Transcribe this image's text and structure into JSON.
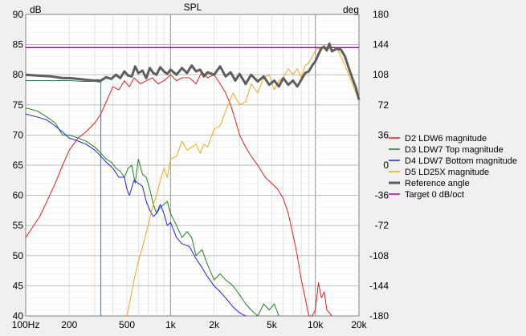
{
  "chart_data": {
    "type": "line",
    "title": "SPL",
    "ylabel_left": "dB",
    "ylabel_right": "deg",
    "x_scale": "log",
    "xlim": [
      100,
      20000
    ],
    "ylim_left": [
      40,
      90
    ],
    "ylim_right": [
      -180,
      180
    ],
    "grid": true,
    "legend_placement": "right",
    "x_ticks": [
      {
        "v": 100,
        "label": "100Hz"
      },
      {
        "v": 200,
        "label": "200"
      },
      {
        "v": 500,
        "label": "500"
      },
      {
        "v": 1000,
        "label": "1k"
      },
      {
        "v": 2000,
        "label": "2k"
      },
      {
        "v": 5000,
        "label": "5k"
      },
      {
        "v": 10000,
        "label": "10k"
      },
      {
        "v": 20000,
        "label": "20k"
      }
    ],
    "y_ticks_left": [
      {
        "v": 90,
        "label": "90"
      },
      {
        "v": 85,
        "label": "85"
      },
      {
        "v": 80,
        "label": "80"
      },
      {
        "v": 75,
        "label": "75"
      },
      {
        "v": 70,
        "label": "70"
      },
      {
        "v": 65,
        "label": "65"
      },
      {
        "v": 60,
        "label": "60"
      },
      {
        "v": 55,
        "label": "55"
      },
      {
        "v": 50,
        "label": "50"
      },
      {
        "v": 45,
        "label": "45"
      },
      {
        "v": 40,
        "label": "40"
      }
    ],
    "y_ticks_right": [
      {
        "v": 180,
        "label": "180"
      },
      {
        "v": 144,
        "label": "144"
      },
      {
        "v": 108,
        "label": "108"
      },
      {
        "v": 72,
        "label": "72"
      },
      {
        "v": 36,
        "label": "36"
      },
      {
        "v": 0,
        "label": "0"
      },
      {
        "v": -36,
        "label": "-36"
      },
      {
        "v": -72,
        "label": "-72"
      },
      {
        "v": -108,
        "label": "-108"
      },
      {
        "v": -144,
        "label": "-144"
      },
      {
        "v": -180,
        "label": "-180"
      }
    ],
    "marker_frequency": 330,
    "series": [
      {
        "name": "D2 LDW6 magnitude",
        "color": "#e02020",
        "width": 1,
        "x": [
          100,
          110,
          125,
          140,
          160,
          180,
          200,
          230,
          260,
          300,
          330,
          360,
          400,
          440,
          480,
          520,
          560,
          620,
          680,
          750,
          820,
          900,
          1000,
          1100,
          1200,
          1350,
          1500,
          1650,
          1800,
          2000,
          2200,
          2400,
          2600,
          2800,
          3000,
          3300,
          3600,
          4000,
          4500,
          5000,
          5500,
          6000,
          6500,
          7000,
          7500,
          8000,
          8500,
          9000,
          9500,
          10000,
          10500,
          11000,
          11500,
          12000,
          12500,
          13000
        ],
        "y": [
          53,
          54.5,
          56.5,
          59,
          62,
          65,
          67.5,
          69.5,
          70.5,
          72,
          73.5,
          75.5,
          78,
          77.5,
          79,
          78,
          79.5,
          78.5,
          79,
          79.5,
          78.5,
          79,
          80,
          79,
          79.5,
          79.5,
          78.5,
          80.5,
          79.5,
          80,
          78.5,
          77,
          75,
          72.5,
          70,
          68,
          66.5,
          65,
          63,
          62,
          61,
          59.5,
          57,
          53.5,
          50,
          46,
          43,
          40,
          40,
          41,
          45.5,
          43,
          44,
          41,
          40.5,
          40
        ]
      },
      {
        "name": "D3 LDW7 Top magnitude",
        "color": "#208020",
        "width": 1,
        "x": [
          100,
          120,
          140,
          160,
          180,
          200,
          230,
          260,
          300,
          330,
          360,
          390,
          420,
          450,
          480,
          510,
          540,
          570,
          600,
          640,
          680,
          720,
          760,
          800,
          850,
          900,
          950,
          1000,
          1100,
          1200,
          1300,
          1400,
          1500,
          1650,
          1800,
          2000,
          2200,
          2400,
          2700,
          3000,
          3300,
          3600,
          4000,
          4400,
          4800,
          5200,
          5600
        ],
        "y": [
          74.5,
          74,
          73,
          72,
          70,
          70,
          69.5,
          69,
          68,
          67,
          66,
          65.5,
          64.5,
          64,
          63,
          64.5,
          65,
          62,
          66,
          63.5,
          63,
          61,
          58.5,
          57,
          58,
          58.5,
          59,
          57,
          55,
          53,
          54,
          53,
          50,
          51,
          48.5,
          46,
          47,
          46,
          45,
          43.5,
          42,
          41,
          40,
          42,
          41,
          42,
          40
        ]
      },
      {
        "name": "D4 LDW7 Bottom magnitude",
        "color": "#2020e0",
        "width": 1,
        "x": [
          100,
          120,
          140,
          160,
          180,
          200,
          230,
          260,
          300,
          330,
          360,
          400,
          440,
          480,
          500,
          520,
          560,
          600,
          640,
          680,
          720,
          760,
          800,
          850,
          900,
          950,
          1000,
          1100,
          1200,
          1350,
          1500,
          1650,
          1800,
          2000,
          2200,
          2400,
          2700,
          3000,
          3300
        ],
        "y": [
          73.5,
          73,
          72.5,
          71.5,
          70.5,
          69.5,
          69,
          68.5,
          67.5,
          66.5,
          65.5,
          64.5,
          63,
          63,
          61,
          60,
          62.5,
          62,
          61.5,
          59,
          57.5,
          56.5,
          57,
          58.5,
          57,
          55,
          55.5,
          53,
          52,
          51.5,
          49.5,
          48,
          46.5,
          45,
          44,
          43,
          41.5,
          40.5,
          40
        ]
      },
      {
        "name": "D5 LD25X magnitude",
        "color": "#f0a820",
        "width": 1,
        "x": [
          500,
          530,
          560,
          600,
          650,
          700,
          750,
          800,
          850,
          900,
          950,
          1000,
          1100,
          1200,
          1300,
          1400,
          1500,
          1600,
          1700,
          1800,
          2000,
          2200,
          2400,
          2700,
          3000,
          3300,
          3600,
          4000,
          4400,
          4800,
          5200,
          5600,
          6000,
          6500,
          7000,
          7500,
          8000,
          8500,
          9000,
          9500,
          10000,
          10500,
          11000,
          11500,
          12000,
          12500,
          13000,
          14000,
          15000,
          16000,
          17000,
          18000,
          19000,
          20000
        ],
        "y": [
          40,
          43,
          46,
          49,
          52,
          55,
          58,
          60,
          62.5,
          64.5,
          63,
          66,
          66.5,
          69,
          67.5,
          68,
          68.5,
          67,
          68.5,
          68,
          71,
          71.5,
          74,
          77,
          75,
          75.5,
          78.5,
          77,
          79.5,
          80,
          77.5,
          79,
          79.5,
          81,
          80,
          81,
          79.5,
          81.5,
          82,
          83,
          84,
          84.5,
          84,
          85,
          84,
          84.5,
          84,
          84.5,
          83,
          81.5,
          80,
          78.5,
          77,
          76
        ]
      },
      {
        "name": "Reference angle",
        "color": "#5e5e5e",
        "width": 3,
        "axis": "right",
        "x": [
          100,
          120,
          150,
          180,
          200,
          230,
          260,
          300,
          330,
          360,
          390,
          420,
          450,
          480,
          510,
          540,
          570,
          600,
          640,
          680,
          720,
          760,
          800,
          850,
          900,
          950,
          1000,
          1100,
          1200,
          1300,
          1400,
          1500,
          1600,
          1700,
          1800,
          2000,
          2200,
          2400,
          2600,
          2800,
          3000,
          3300,
          3600,
          4000,
          4400,
          4800,
          5200,
          5600,
          6000,
          6500,
          7000,
          7500,
          8000,
          8500,
          9000,
          9500,
          10000,
          10500,
          11000,
          11500,
          12000,
          12500,
          13000,
          14000,
          15000,
          16000,
          17000,
          18000,
          19000,
          20000
        ],
        "y": [
          108,
          107,
          106,
          104,
          104,
          103,
          102,
          101,
          101,
          105,
          103,
          108,
          104,
          112,
          107,
          106,
          118,
          110,
          113,
          104,
          116,
          110,
          108,
          117,
          112,
          109,
          114,
          108,
          116,
          110,
          119,
          112,
          114,
          106,
          111,
          108,
          118,
          106,
          111,
          101,
          109,
          97,
          108,
          100,
          106,
          96,
          101,
          94,
          104,
          96,
          101,
          94,
          102,
          110,
          112,
          119,
          124,
          132,
          140,
          141,
          137,
          145,
          136,
          139,
          138,
          130,
          116,
          104,
          93,
          78
        ]
      },
      {
        "name": "Target 0 dB/oct",
        "color": "#b000b0",
        "width": 1.5,
        "x": [
          100,
          20000
        ],
        "y": [
          84.5,
          84.5
        ]
      }
    ],
    "reference_tail": {
      "name": "Reference angle",
      "axis": "right",
      "x": [
        100,
        150,
        200,
        250,
        300,
        330
      ],
      "y": [
        101,
        101,
        101,
        100,
        100,
        99
      ]
    }
  }
}
